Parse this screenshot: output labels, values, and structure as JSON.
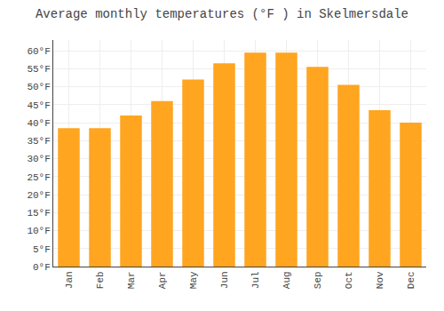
{
  "chart_data": {
    "type": "bar",
    "title": "Average monthly temperatures (°F ) in Skelmersdale",
    "categories": [
      "Jan",
      "Feb",
      "Mar",
      "Apr",
      "May",
      "Jun",
      "Jul",
      "Aug",
      "Sep",
      "Oct",
      "Nov",
      "Dec"
    ],
    "values": [
      38.5,
      38.5,
      42,
      46,
      52,
      56.5,
      59.5,
      59.5,
      55.5,
      50.5,
      43.5,
      40
    ],
    "color": "#FFA520",
    "ylim": [
      0,
      63
    ],
    "yticks": [
      {
        "value": 0,
        "label": "0°F"
      },
      {
        "value": 5,
        "label": "5°F"
      },
      {
        "value": 10,
        "label": "10°F"
      },
      {
        "value": 15,
        "label": "15°F"
      },
      {
        "value": 20,
        "label": "20°F"
      },
      {
        "value": 25,
        "label": "25°F"
      },
      {
        "value": 30,
        "label": "30°F"
      },
      {
        "value": 35,
        "label": "35°F"
      },
      {
        "value": 40,
        "label": "40°F"
      },
      {
        "value": 45,
        "label": "45°F"
      },
      {
        "value": 50,
        "label": "50°F"
      },
      {
        "value": 55,
        "label": "55°F"
      },
      {
        "value": 60,
        "label": "60°F"
      }
    ],
    "grid": true
  }
}
